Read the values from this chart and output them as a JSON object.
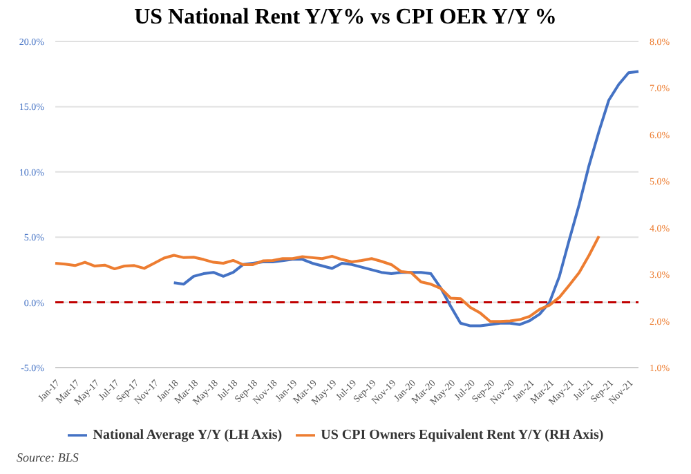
{
  "chart_data": {
    "type": "line",
    "title": "US National Rent Y/Y% vs CPI OER Y/Y %",
    "categories": [
      "Jan-17",
      null,
      "Mar-17",
      null,
      "May-17",
      null,
      "Jul-17",
      null,
      "Sep-17",
      null,
      "Nov-17",
      null,
      "Jan-18",
      null,
      "Mar-18",
      null,
      "May-18",
      null,
      "Jul-18",
      null,
      "Sep-18",
      null,
      "Nov-18",
      null,
      "Jan-19",
      null,
      "Mar-19",
      null,
      "May-19",
      null,
      "Jul-19",
      null,
      "Sep-19",
      null,
      "Nov-19",
      null,
      "Jan-20",
      null,
      "Mar-20",
      null,
      "May-20",
      null,
      "Jul-20",
      null,
      "Sep-20",
      null,
      "Nov-20",
      null,
      "Jan-21",
      null,
      "Mar-21",
      null,
      "May-21",
      null,
      "Jul-21",
      null,
      "Sep-21",
      null,
      "Nov-21",
      null
    ],
    "series": [
      {
        "name": "National Average Y/Y (LH Axis)",
        "color": "#4472c4",
        "values": [
          null,
          null,
          null,
          null,
          null,
          null,
          null,
          null,
          null,
          null,
          null,
          null,
          1.5,
          1.4,
          2.0,
          2.2,
          2.3,
          2.0,
          2.3,
          2.9,
          3.0,
          3.1,
          3.1,
          3.2,
          3.3,
          3.3,
          3.0,
          2.8,
          2.6,
          3.0,
          2.9,
          2.7,
          2.5,
          2.3,
          2.2,
          2.3,
          2.3,
          2.3,
          2.2,
          1.1,
          -0.3,
          -1.6,
          -1.8,
          -1.8,
          -1.7,
          -1.6,
          -1.6,
          -1.7,
          -1.4,
          -0.9,
          0.0,
          2.0,
          4.8,
          7.5,
          10.5,
          13.1,
          15.5,
          16.7,
          17.6,
          17.7
        ]
      },
      {
        "name": "US CPI Owners Equivalent Rent Y/Y (RH Axis)",
        "color": "#ed7d31",
        "axis": "y2",
        "values": [
          3.24,
          3.22,
          3.19,
          3.26,
          3.18,
          3.2,
          3.12,
          3.18,
          3.19,
          3.13,
          3.24,
          3.35,
          3.41,
          3.36,
          3.37,
          3.32,
          3.26,
          3.24,
          3.3,
          3.21,
          3.21,
          3.29,
          3.3,
          3.34,
          3.34,
          3.38,
          3.36,
          3.34,
          3.39,
          3.32,
          3.27,
          3.3,
          3.34,
          3.28,
          3.21,
          3.06,
          3.04,
          2.84,
          2.79,
          2.7,
          2.49,
          2.48,
          2.29,
          2.17,
          1.99,
          1.99,
          2.0,
          2.03,
          2.1,
          2.25,
          2.34,
          2.51,
          2.77,
          3.04,
          3.41,
          3.82,
          null,
          null,
          null,
          null
        ]
      }
    ],
    "ylim": [
      -5,
      20
    ],
    "yticks": [
      {
        "value": -5,
        "label": "-5.0%"
      },
      {
        "value": 0,
        "label": "0.0%"
      },
      {
        "value": 5,
        "label": "5.0%"
      },
      {
        "value": 10,
        "label": "10.0%"
      },
      {
        "value": 15,
        "label": "15.0%"
      },
      {
        "value": 20,
        "label": "20.0%"
      }
    ],
    "y2lim": [
      1,
      8
    ],
    "y2ticks": [
      {
        "value": 1,
        "label": "1.0%"
      },
      {
        "value": 2,
        "label": "2.0%"
      },
      {
        "value": 3,
        "label": "3.0%"
      },
      {
        "value": 4,
        "label": "4.0%"
      },
      {
        "value": 5,
        "label": "5.0%"
      },
      {
        "value": 6,
        "label": "6.0%"
      },
      {
        "value": 7,
        "label": "7.0%"
      },
      {
        "value": 8,
        "label": "8.0%"
      }
    ],
    "ref_lines": [
      {
        "axis": "y",
        "value": 0,
        "color": "#c00000",
        "line_style": "dashed"
      }
    ],
    "grid": "y",
    "legend": "bottom",
    "marker": "none",
    "line_style": "solid",
    "annotations": [
      "Source: BLS"
    ]
  }
}
